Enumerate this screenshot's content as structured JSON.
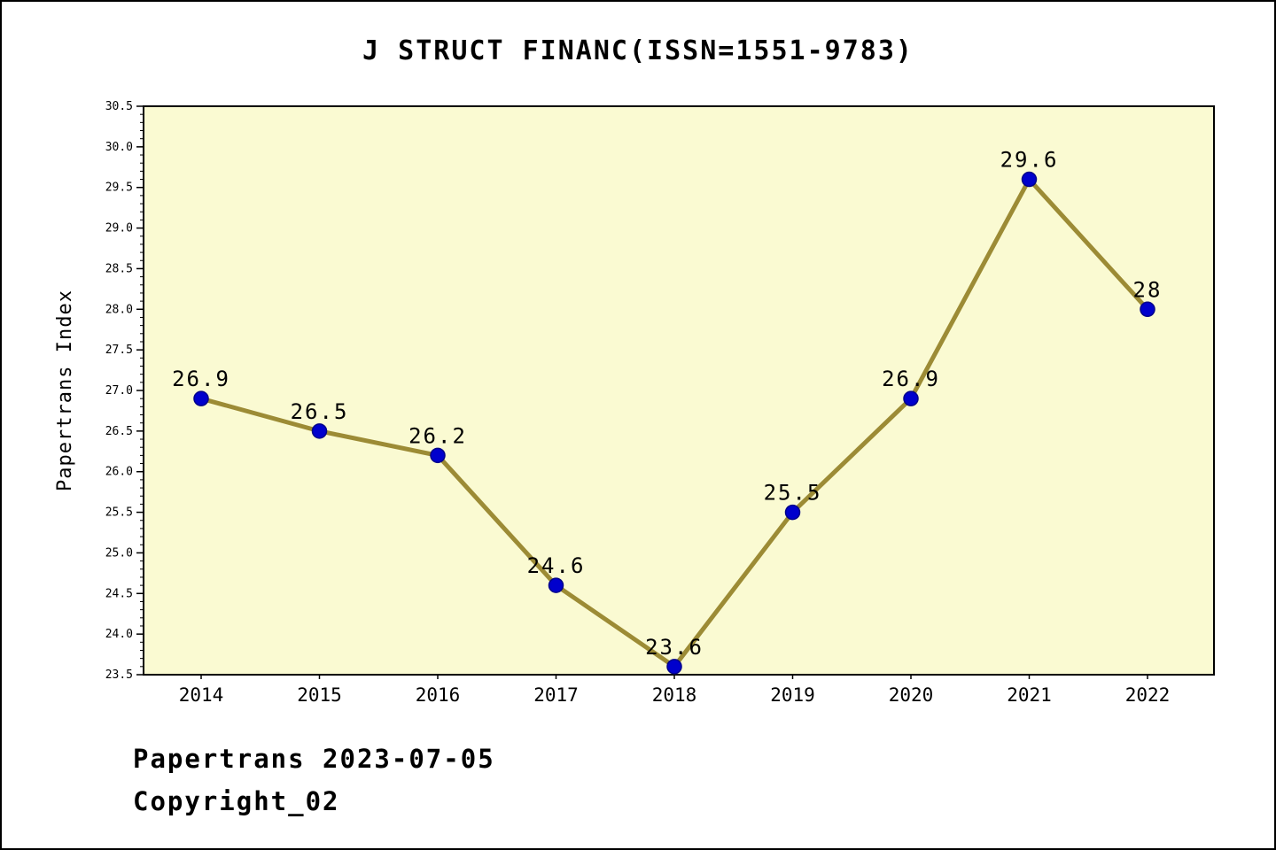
{
  "chart_data": {
    "type": "line",
    "title": "J STRUCT FINANC(ISSN=1551-9783)",
    "ylabel": "Papertrans Index",
    "xlabel": "",
    "categories": [
      "2014",
      "2015",
      "2016",
      "2017",
      "2018",
      "2019",
      "2020",
      "2021",
      "2022"
    ],
    "values": [
      26.9,
      26.5,
      26.2,
      24.6,
      23.6,
      25.5,
      26.9,
      29.6,
      28
    ],
    "point_labels": [
      "26.9",
      "26.5",
      "26.2",
      "24.6",
      "23.6",
      "25.5",
      "26.9",
      "29.6",
      "28"
    ],
    "ylim": [
      23.5,
      30.5
    ],
    "ytick_step": 0.5,
    "ytick_minor_step": 0.1,
    "grid": false,
    "legend": null,
    "colors": {
      "line": "#9C8B35",
      "marker_fill": "#0000CD",
      "marker_edge": "#00008B",
      "plot_background": "#FAFAD2",
      "axis": "#000000",
      "text": "#000000"
    }
  },
  "footer": {
    "line1": "Papertrans 2023-07-05",
    "line2": "Copyright_02"
  }
}
